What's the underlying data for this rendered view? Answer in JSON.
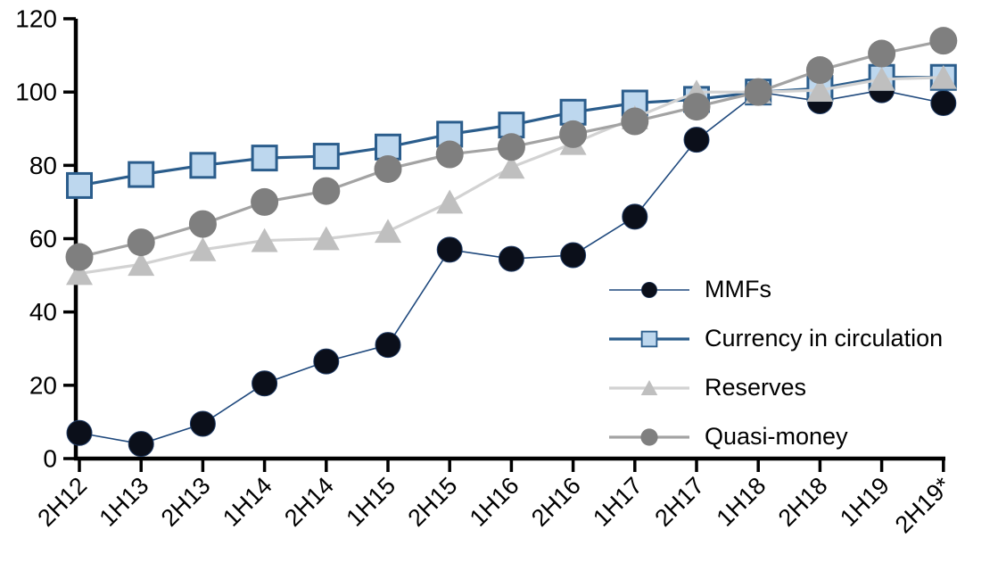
{
  "chart_data": {
    "type": "line",
    "title": "",
    "xlabel": "",
    "ylabel": "",
    "grid": false,
    "axis_color": "#000000",
    "background_color": "#ffffff",
    "categories": [
      "2H12",
      "1H13",
      "2H13",
      "1H14",
      "2H14",
      "1H15",
      "2H15",
      "1H16",
      "2H16",
      "1H17",
      "2H17",
      "1H18",
      "2H18",
      "1H19",
      "2H19*"
    ],
    "y_axis": {
      "min": 0,
      "max": 120,
      "tick_interval": 20,
      "ticks": [
        0,
        20,
        40,
        60,
        80,
        100,
        120
      ]
    },
    "series": [
      {
        "name": "MMFs",
        "marker": "circle",
        "marker_fill": "#0b0f1a",
        "marker_stroke": "#1f3a64",
        "marker_stroke_width": 1,
        "marker_size": 28,
        "line_color": "#1f497d",
        "line_width": 1.6,
        "values": [
          7,
          4,
          9.5,
          20.5,
          26.5,
          31,
          57,
          54.5,
          55.5,
          66,
          87,
          100,
          97.5,
          100.5,
          97
        ]
      },
      {
        "name": "Currency in circulation",
        "marker": "square",
        "marker_fill": "#bdd7ee",
        "marker_stroke": "#2b5d8c",
        "marker_stroke_width": 3,
        "marker_size": 27,
        "line_color": "#2b5d8c",
        "line_width": 3.2,
        "values": [
          74.5,
          77.5,
          80,
          82,
          82.5,
          85,
          88.5,
          91,
          94.5,
          97,
          98,
          100,
          101,
          104,
          104
        ]
      },
      {
        "name": "Reserves",
        "marker": "triangle",
        "marker_fill": "#bfbfbf",
        "marker_stroke": "none",
        "marker_stroke_width": 0,
        "marker_size": 30,
        "line_color": "#d2d2d2",
        "line_width": 3.2,
        "values": [
          50.5,
          53,
          57,
          59.5,
          60,
          62,
          70,
          79.5,
          86,
          93,
          100,
          100,
          100.5,
          103.5,
          104
        ]
      },
      {
        "name": "Quasi-money",
        "marker": "circle",
        "marker_fill": "#7f7f7f",
        "marker_stroke": "none",
        "marker_stroke_width": 0,
        "marker_size": 31,
        "line_color": "#a3a3a3",
        "line_width": 3.2,
        "values": [
          55,
          59,
          64,
          70,
          73,
          79,
          83,
          85,
          88.5,
          92,
          96,
          100,
          106,
          110.5,
          114
        ]
      }
    ],
    "legend": {
      "position": "inside-right",
      "entries": [
        "MMFs",
        "Currency in circulation",
        "Reserves",
        "Quasi-money"
      ]
    }
  }
}
